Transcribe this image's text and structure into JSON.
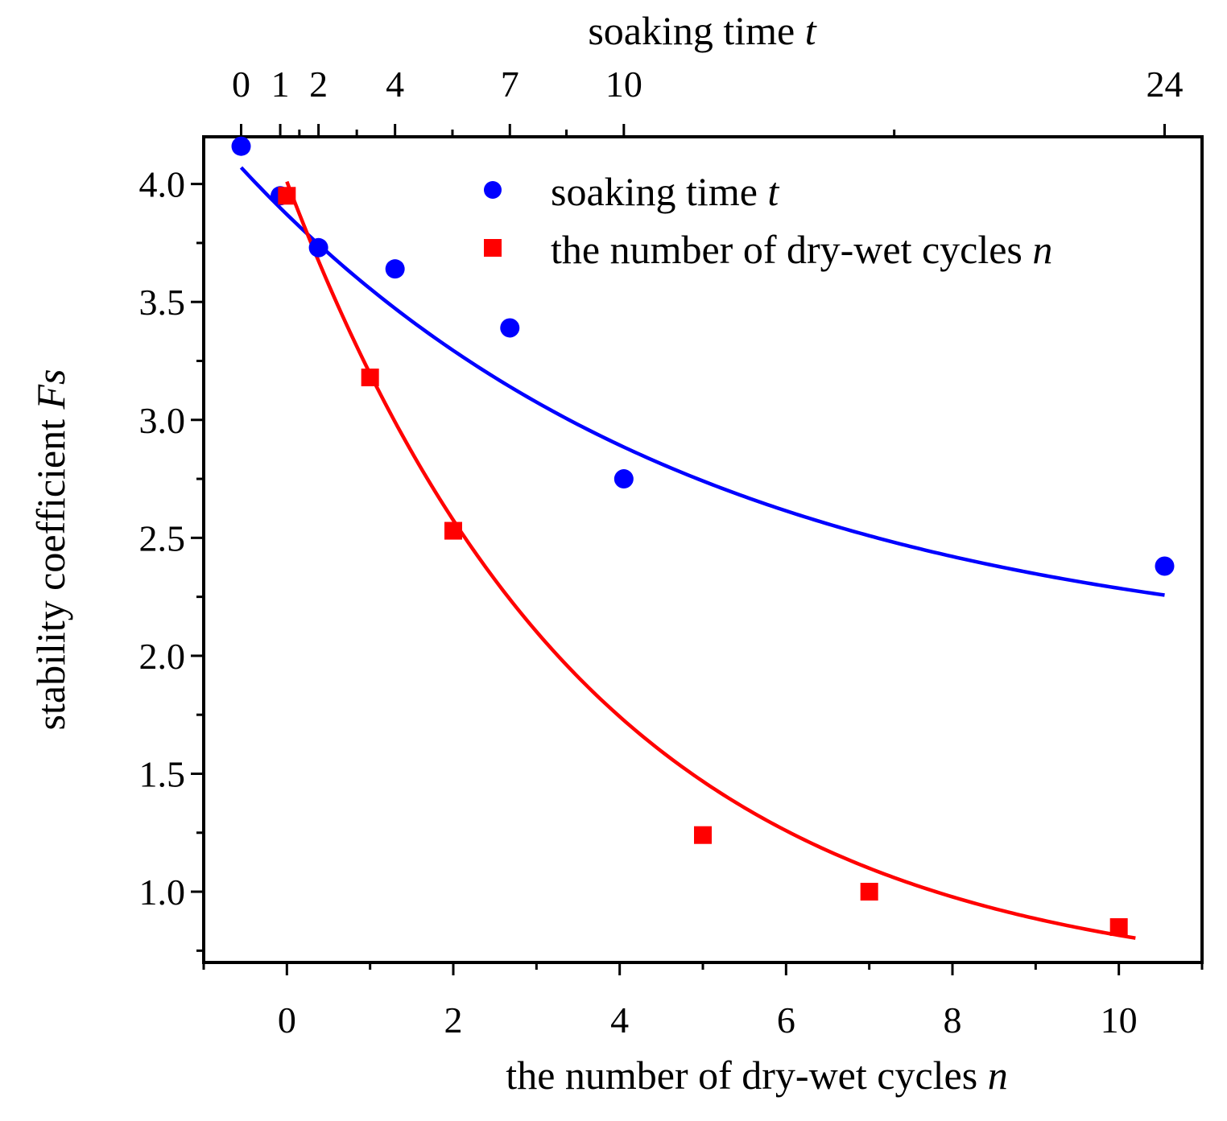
{
  "chart_data": {
    "type": "scatter",
    "title": "",
    "xlabel": "the number of dry-wet cycles",
    "xlabel_var": "n",
    "x2label": "soaking time",
    "x2label_var": "t",
    "ylabel": "stability coefficient",
    "ylabel_var": "Fs",
    "xlim": [
      -1,
      11
    ],
    "ylim": [
      0.7,
      4.2
    ],
    "x_ticks": [
      0,
      2,
      4,
      6,
      8,
      10
    ],
    "x_tick_labels": [
      "0",
      "2",
      "4",
      "6",
      "8",
      "10"
    ],
    "y_ticks": [
      1.0,
      1.5,
      2.0,
      2.5,
      3.0,
      3.5,
      4.0
    ],
    "y_tick_labels": [
      "1.0",
      "1.5",
      "2.0",
      "2.5",
      "3.0",
      "3.5",
      "4.0"
    ],
    "x2_ticks": [
      -0.55,
      -0.08,
      0.38,
      1.3,
      2.68,
      4.05,
      10.55
    ],
    "x2_tick_labels": [
      "0",
      "1",
      "2",
      "4",
      "7",
      "10",
      "24"
    ],
    "grid": false,
    "legend_position": "top-right",
    "series": [
      {
        "name": "soaking time",
        "name_var": "t",
        "color": "#0000ff",
        "marker": "circle",
        "x": [
          -0.55,
          -0.08,
          0.38,
          1.3,
          2.68,
          4.05,
          10.55
        ],
        "y": [
          4.16,
          3.95,
          3.73,
          3.64,
          3.39,
          2.75,
          2.38
        ],
        "fit": {
          "type": "exponential",
          "a": 1.98,
          "b": 2.09,
          "c": 0.182,
          "x0": -0.55,
          "xrange": [
            -0.55,
            10.55
          ]
        }
      },
      {
        "name": "the number of dry-wet cycles",
        "name_var": "n",
        "color": "#ff0000",
        "marker": "square",
        "x": [
          0,
          1,
          2,
          5,
          7,
          10
        ],
        "y": [
          3.95,
          3.18,
          2.53,
          1.24,
          1.0,
          0.85
        ],
        "fit": {
          "type": "exponential",
          "a": 0.59,
          "b": 3.42,
          "c": 0.272,
          "x0": 0,
          "xrange": [
            0,
            10.2
          ]
        }
      }
    ]
  }
}
